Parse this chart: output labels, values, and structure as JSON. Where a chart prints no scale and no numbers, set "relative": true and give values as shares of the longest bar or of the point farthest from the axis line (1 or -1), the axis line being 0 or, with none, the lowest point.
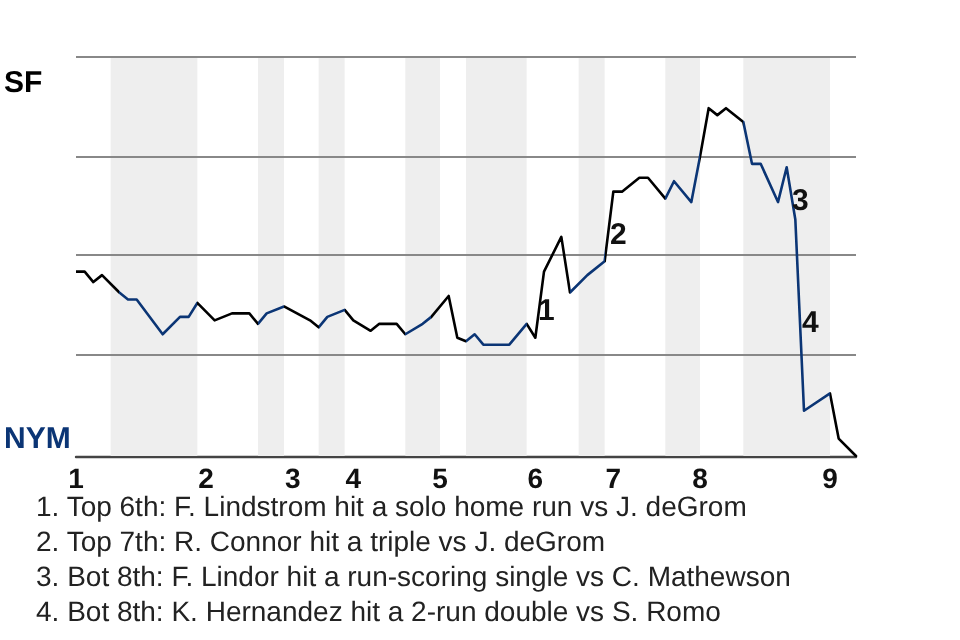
{
  "chart_data": {
    "type": "line",
    "relative": true,
    "categories": [
      "1",
      null,
      null,
      null,
      null,
      null,
      null,
      null,
      null,
      null,
      null,
      null,
      null,
      null,
      null,
      "2",
      null,
      null,
      null,
      null,
      null,
      null,
      null,
      null,
      null,
      "3",
      null,
      null,
      null,
      null,
      null,
      null,
      "4",
      null,
      null,
      null,
      null,
      null,
      null,
      null,
      null,
      null,
      "5",
      null,
      null,
      null,
      null,
      null,
      null,
      null,
      null,
      null,
      null,
      "6",
      null,
      null,
      null,
      null,
      null,
      null,
      null,
      null,
      "7",
      null,
      null,
      null,
      null,
      null,
      null,
      null,
      null,
      null,
      "8",
      null,
      null,
      null,
      null,
      null,
      null,
      null,
      null,
      null,
      null,
      null,
      null,
      null,
      null,
      "9",
      null,
      null,
      null
    ],
    "series": [
      {
        "values": [
          0.53,
          0.53,
          0.5,
          0.52,
          null,
          0.47,
          0.45,
          0.45,
          null,
          null,
          0.35,
          null,
          0.4,
          0.4,
          0.44,
          null,
          0.39,
          null,
          0.41,
          null,
          0.41,
          0.38,
          0.41,
          null,
          0.43,
          null,
          null,
          0.39,
          0.37,
          0.4,
          null,
          0.42,
          0.39,
          null,
          0.36,
          0.38,
          null,
          0.38,
          0.35,
          null,
          0.38,
          0.4,
          null,
          0.46,
          0.34,
          0.33,
          0.35,
          0.32,
          null,
          null,
          0.32,
          null,
          0.38,
          0.34,
          0.53,
          null,
          0.63,
          0.47,
          null,
          0.52,
          null,
          0.56,
          0.76,
          0.76,
          null,
          0.8,
          0.8,
          null,
          0.74,
          0.79,
          null,
          0.73,
          0.86,
          1,
          0.98,
          1,
          null,
          0.96,
          0.84,
          0.84,
          null,
          0.73,
          0.83,
          0.68,
          0.13,
          null,
          null,
          0.18,
          0.05,
          null,
          0
        ],
        "colors": [
          "#000000",
          "#000000",
          "#000000",
          "#000000",
          null,
          "#0b3575",
          "#0b3575",
          "#0b3575",
          null,
          null,
          "#0b3575",
          null,
          "#0b3575",
          "#0b3575",
          "#000000",
          null,
          "#000000",
          null,
          "#000000",
          null,
          "#000000",
          "#0b3575",
          "#0b3575",
          null,
          "#000000",
          null,
          null,
          "#000000",
          "#0b3575",
          "#0b3575",
          null,
          "#000000",
          "#000000",
          null,
          "#000000",
          "#000000",
          null,
          "#000000",
          "#0b3575",
          null,
          "#0b3575",
          "#000000",
          null,
          "#000000",
          "#000000",
          "#0b3575",
          "#0b3575",
          "#0b3575",
          null,
          null,
          "#0b3575",
          null,
          "#000000",
          "#000000",
          "#000000",
          null,
          "#000000",
          "#0b3575",
          null,
          "#0b3575",
          null,
          "#000000",
          "#000000",
          "#000000",
          null,
          "#000000",
          "#000000",
          null,
          "#0b3575",
          "#0b3575",
          null,
          "#0b3575",
          "#000000",
          "#000000",
          "#000000",
          "#000000",
          null,
          "#0b3575",
          "#0b3575",
          "#0b3575",
          null,
          "#0b3575",
          "#0b3575",
          "#0b3575",
          "#0b3575",
          null,
          null,
          "#000000",
          "#000000",
          null,
          "#000000"
        ]
      }
    ],
    "marker": "none",
    "ref_lines": [
      {
        "axis": "y",
        "value": 0.29,
        "color": "#888888"
      },
      {
        "axis": "y",
        "value": 0.58,
        "color": "#888888"
      },
      {
        "axis": "y",
        "value": 0.86,
        "color": "#888888"
      },
      {
        "axis": "y",
        "value": 1.15,
        "color": "#888888"
      }
    ],
    "annotations": [
      "SF",
      "NYM",
      "1",
      "2",
      "3",
      "4",
      "1. Top 6th: F. Lindstrom hit a solo home run vs J. deGrom",
      "2. Top 7th: R. Connor hit a triple vs J. deGrom",
      "3. Bot 8th: F. Lindor hit a run-scoring single vs C. Mathewson",
      "4. Bot 8th: K. Hernandez hit a 2-run double vs S. Romo"
    ]
  }
}
